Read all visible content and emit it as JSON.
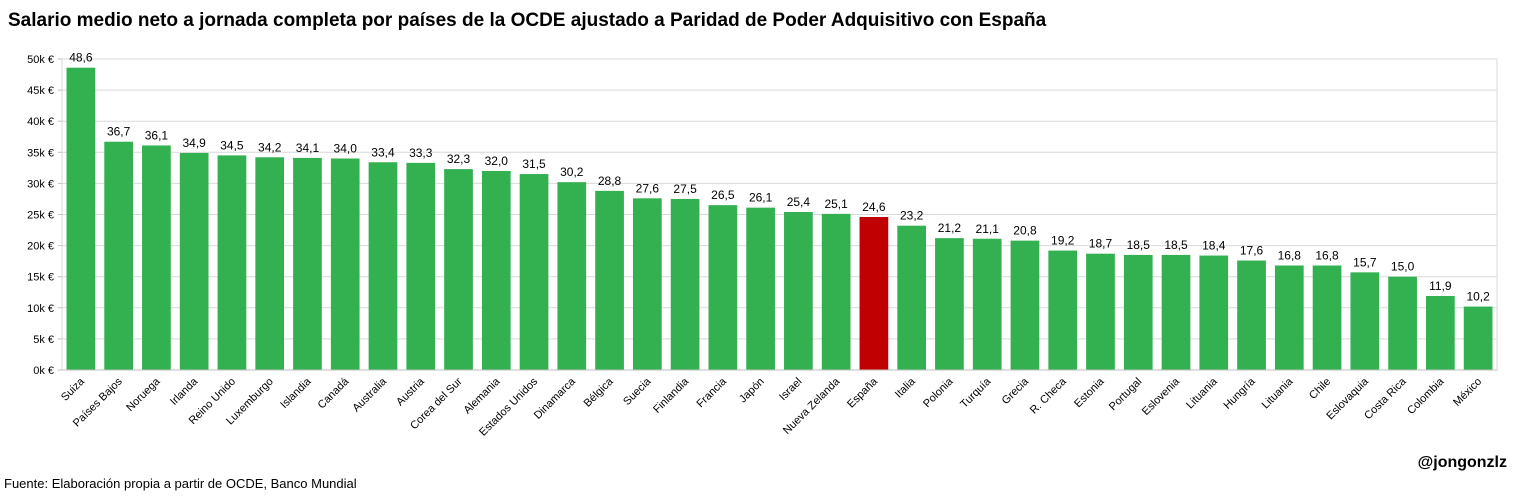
{
  "chart_data": {
    "type": "bar",
    "title": "Salario medio neto a jornada completa por países de la OCDE ajustado a Paridad de Poder Adquisitivo con España",
    "xlabel": "",
    "ylabel": "",
    "ylim": [
      0,
      50000
    ],
    "yticks": [
      "0k €",
      "5k €",
      "10k €",
      "15k €",
      "20k €",
      "25k €",
      "30k €",
      "35k €",
      "40k €",
      "45k €",
      "50k €"
    ],
    "grid": true,
    "categories": [
      "Suiza",
      "Países Bajos",
      "Noruega",
      "Irlanda",
      "Reino Unido",
      "Luxemburgo",
      "Islandia",
      "Canadá",
      "Australia",
      "Austria",
      "Corea del Sur",
      "Alemania",
      "Estados Unidos",
      "Dinamarca",
      "Bélgica",
      "Suecia",
      "Finlandia",
      "Francia",
      "Japón",
      "Israel",
      "Nueva Zelanda",
      "España",
      "Italia",
      "Polonia",
      "Turquía",
      "Grecia",
      "R. Checa",
      "Estonia",
      "Portugal",
      "Eslovenia",
      "Lituania",
      "Hungría",
      "Lituania",
      "Chile",
      "Eslovaquia",
      "Costa Rica",
      "Colombia",
      "México"
    ],
    "values": [
      48600,
      36700,
      36100,
      34900,
      34500,
      34200,
      34100,
      34000,
      33400,
      33300,
      32300,
      32000,
      31500,
      30200,
      28800,
      27600,
      27500,
      26500,
      26100,
      25400,
      25100,
      24600,
      23200,
      21200,
      21100,
      20800,
      19200,
      18700,
      18500,
      18500,
      18400,
      17600,
      16800,
      16800,
      15700,
      15000,
      11900,
      10200
    ],
    "data_labels": [
      "48,6",
      "36,7",
      "36,1",
      "34,9",
      "34,5",
      "34,2",
      "34,1",
      "34,0",
      "33,4",
      "33,3",
      "32,3",
      "32,0",
      "31,5",
      "30,2",
      "28,8",
      "27,6",
      "27,5",
      "26,5",
      "26,1",
      "25,4",
      "25,1",
      "24,6",
      "23,2",
      "21,2",
      "21,1",
      "20,8",
      "19,2",
      "18,7",
      "18,5",
      "18,5",
      "18,4",
      "17,6",
      "16,8",
      "16,8",
      "15,7",
      "15,0",
      "11,9",
      "10,2"
    ],
    "highlight": "España",
    "colors": {
      "bar": "#33b050",
      "highlight": "#c00000",
      "grid": "#d9d9d9"
    }
  },
  "source": "Fuente: Elaboración propia a partir de OCDE, Banco Mundial",
  "handle": "@jongonzlz"
}
